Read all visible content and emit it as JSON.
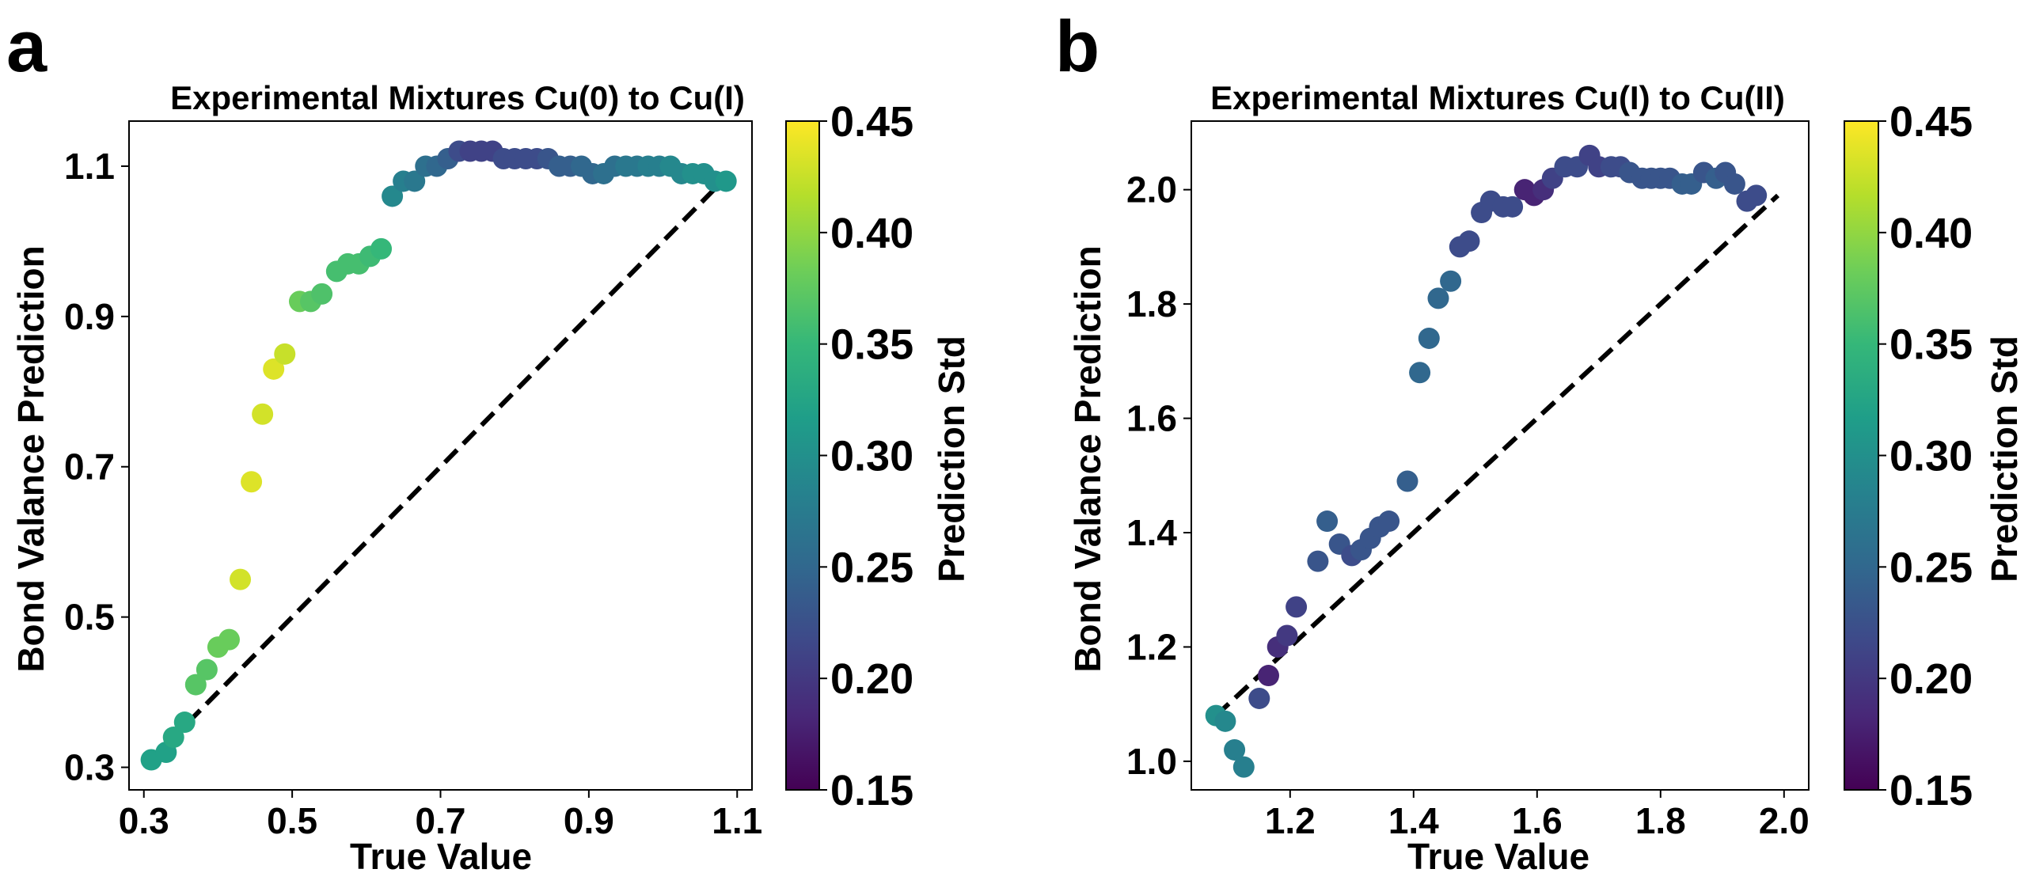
{
  "colorbar_scale": {
    "colormap": "viridis",
    "colors": [
      "#440154",
      "#482878",
      "#3e4989",
      "#31688e",
      "#26828e",
      "#1f9e89",
      "#35b779",
      "#6ece58",
      "#b5de2b",
      "#fde725"
    ]
  },
  "chart_data": [
    {
      "panel": "a",
      "type": "scatter",
      "title": "Experimental Mixtures Cu(0) to Cu(I)",
      "xlabel": "True Value",
      "ylabel": "Bond Valance Prediction",
      "xlim": [
        0.28,
        1.12
      ],
      "ylim": [
        0.27,
        1.16
      ],
      "xticks": [
        "0.3",
        "0.5",
        "0.7",
        "0.9",
        "1.1"
      ],
      "yticks": [
        "0.3",
        "0.5",
        "0.7",
        "0.9",
        "1.1"
      ],
      "reference_line": {
        "style": "dashed",
        "x": [
          0.31,
          1.08
        ],
        "y": [
          0.31,
          1.08
        ]
      },
      "colorbar": {
        "label": "Prediction Std",
        "range": [
          0.15,
          0.45
        ],
        "ticks": [
          "0.15",
          "0.20",
          "0.25",
          "0.30",
          "0.35",
          "0.40",
          "0.45"
        ]
      },
      "points": [
        [
          0.31,
          0.31,
          0.32
        ],
        [
          0.33,
          0.32,
          0.32
        ],
        [
          0.34,
          0.34,
          0.33
        ],
        [
          0.355,
          0.36,
          0.33
        ],
        [
          0.37,
          0.41,
          0.37
        ],
        [
          0.385,
          0.43,
          0.37
        ],
        [
          0.4,
          0.46,
          0.38
        ],
        [
          0.415,
          0.47,
          0.38
        ],
        [
          0.43,
          0.55,
          0.43
        ],
        [
          0.445,
          0.68,
          0.435
        ],
        [
          0.46,
          0.77,
          0.43
        ],
        [
          0.475,
          0.83,
          0.435
        ],
        [
          0.49,
          0.85,
          0.425
        ],
        [
          0.51,
          0.92,
          0.38
        ],
        [
          0.525,
          0.92,
          0.37
        ],
        [
          0.54,
          0.93,
          0.365
        ],
        [
          0.56,
          0.96,
          0.36
        ],
        [
          0.575,
          0.97,
          0.36
        ],
        [
          0.59,
          0.97,
          0.36
        ],
        [
          0.605,
          0.98,
          0.355
        ],
        [
          0.62,
          0.99,
          0.35
        ],
        [
          0.635,
          1.06,
          0.29
        ],
        [
          0.65,
          1.08,
          0.28
        ],
        [
          0.665,
          1.08,
          0.27
        ],
        [
          0.68,
          1.1,
          0.26
        ],
        [
          0.695,
          1.1,
          0.25
        ],
        [
          0.71,
          1.11,
          0.24
        ],
        [
          0.725,
          1.12,
          0.22
        ],
        [
          0.74,
          1.12,
          0.21
        ],
        [
          0.755,
          1.12,
          0.21
        ],
        [
          0.77,
          1.12,
          0.21
        ],
        [
          0.785,
          1.11,
          0.22
        ],
        [
          0.8,
          1.11,
          0.22
        ],
        [
          0.815,
          1.11,
          0.22
        ],
        [
          0.83,
          1.11,
          0.22
        ],
        [
          0.845,
          1.11,
          0.23
        ],
        [
          0.86,
          1.1,
          0.24
        ],
        [
          0.875,
          1.1,
          0.24
        ],
        [
          0.89,
          1.1,
          0.25
        ],
        [
          0.905,
          1.09,
          0.25
        ],
        [
          0.92,
          1.09,
          0.26
        ],
        [
          0.935,
          1.1,
          0.26
        ],
        [
          0.95,
          1.1,
          0.27
        ],
        [
          0.965,
          1.1,
          0.27
        ],
        [
          0.98,
          1.1,
          0.28
        ],
        [
          0.995,
          1.1,
          0.28
        ],
        [
          1.01,
          1.1,
          0.29
        ],
        [
          1.025,
          1.09,
          0.29
        ],
        [
          1.04,
          1.09,
          0.3
        ],
        [
          1.055,
          1.09,
          0.3
        ],
        [
          1.07,
          1.08,
          0.3
        ],
        [
          1.085,
          1.08,
          0.31
        ]
      ]
    },
    {
      "panel": "b",
      "type": "scatter",
      "title": "Experimental Mixtures Cu(I) to Cu(II)",
      "xlabel": "True Value",
      "ylabel": "Bond Valance Prediction",
      "xlim": [
        1.04,
        2.04
      ],
      "ylim": [
        0.95,
        2.12
      ],
      "xticks": [
        "1.2",
        "1.4",
        "1.6",
        "1.8",
        "2.0"
      ],
      "yticks": [
        "1.0",
        "1.2",
        "1.4",
        "1.6",
        "1.8",
        "2.0"
      ],
      "reference_line": {
        "style": "dashed",
        "x": [
          1.08,
          1.99
        ],
        "y": [
          1.08,
          1.99
        ]
      },
      "colorbar": {
        "label": "Prediction Std",
        "range": [
          0.15,
          0.45
        ],
        "ticks": [
          "0.15",
          "0.20",
          "0.25",
          "0.30",
          "0.35",
          "0.40",
          "0.45"
        ]
      },
      "points": [
        [
          1.08,
          1.08,
          0.3
        ],
        [
          1.095,
          1.07,
          0.29
        ],
        [
          1.11,
          1.02,
          0.28
        ],
        [
          1.125,
          0.99,
          0.28
        ],
        [
          1.15,
          1.11,
          0.22
        ],
        [
          1.165,
          1.15,
          0.18
        ],
        [
          1.18,
          1.2,
          0.19
        ],
        [
          1.195,
          1.22,
          0.2
        ],
        [
          1.21,
          1.27,
          0.21
        ],
        [
          1.245,
          1.35,
          0.23
        ],
        [
          1.26,
          1.42,
          0.24
        ],
        [
          1.28,
          1.38,
          0.23
        ],
        [
          1.3,
          1.36,
          0.22
        ],
        [
          1.315,
          1.37,
          0.23
        ],
        [
          1.33,
          1.39,
          0.23
        ],
        [
          1.345,
          1.41,
          0.23
        ],
        [
          1.36,
          1.42,
          0.23
        ],
        [
          1.39,
          1.49,
          0.24
        ],
        [
          1.41,
          1.68,
          0.25
        ],
        [
          1.425,
          1.74,
          0.25
        ],
        [
          1.44,
          1.81,
          0.25
        ],
        [
          1.46,
          1.84,
          0.25
        ],
        [
          1.475,
          1.9,
          0.22
        ],
        [
          1.49,
          1.91,
          0.22
        ],
        [
          1.51,
          1.96,
          0.22
        ],
        [
          1.525,
          1.98,
          0.22
        ],
        [
          1.545,
          1.97,
          0.22
        ],
        [
          1.56,
          1.97,
          0.22
        ],
        [
          1.58,
          2.0,
          0.18
        ],
        [
          1.595,
          1.99,
          0.18
        ],
        [
          1.61,
          2.0,
          0.19
        ],
        [
          1.625,
          2.02,
          0.21
        ],
        [
          1.645,
          2.04,
          0.22
        ],
        [
          1.665,
          2.04,
          0.22
        ],
        [
          1.685,
          2.06,
          0.21
        ],
        [
          1.7,
          2.04,
          0.21
        ],
        [
          1.72,
          2.04,
          0.22
        ],
        [
          1.735,
          2.04,
          0.22
        ],
        [
          1.75,
          2.03,
          0.23
        ],
        [
          1.77,
          2.02,
          0.23
        ],
        [
          1.785,
          2.02,
          0.23
        ],
        [
          1.8,
          2.02,
          0.23
        ],
        [
          1.815,
          2.02,
          0.23
        ],
        [
          1.835,
          2.01,
          0.24
        ],
        [
          1.85,
          2.01,
          0.24
        ],
        [
          1.87,
          2.03,
          0.23
        ],
        [
          1.89,
          2.02,
          0.24
        ],
        [
          1.905,
          2.03,
          0.23
        ],
        [
          1.92,
          2.01,
          0.23
        ],
        [
          1.94,
          1.98,
          0.22
        ],
        [
          1.955,
          1.99,
          0.22
        ]
      ]
    }
  ]
}
